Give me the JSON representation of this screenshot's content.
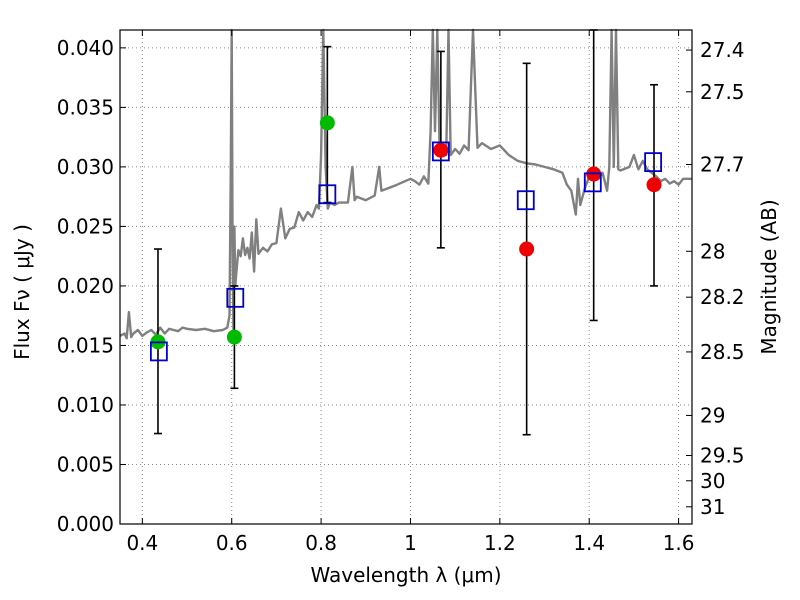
{
  "chart_data": {
    "type": "scatter",
    "xlabel": "Wavelength  λ (μm)",
    "ylabel": "Flux  Fν  ( μJy )",
    "y2label": "Magnitude (AB)",
    "xlim": [
      0.35,
      1.63
    ],
    "ylim": [
      0.0,
      0.0415
    ],
    "grid": true,
    "x_ticks": [
      {
        "value": 0.4,
        "label": "0.4"
      },
      {
        "value": 0.6,
        "label": "0.6"
      },
      {
        "value": 0.8,
        "label": "0.8"
      },
      {
        "value": 1.0,
        "label": "1"
      },
      {
        "value": 1.2,
        "label": "1.2"
      },
      {
        "value": 1.4,
        "label": "1.4"
      },
      {
        "value": 1.6,
        "label": "1.6"
      }
    ],
    "y_ticks": [
      {
        "value": 0.0,
        "label": "0.000"
      },
      {
        "value": 0.005,
        "label": "0.005"
      },
      {
        "value": 0.01,
        "label": "0.010"
      },
      {
        "value": 0.015,
        "label": "0.015"
      },
      {
        "value": 0.02,
        "label": "0.020"
      },
      {
        "value": 0.025,
        "label": "0.025"
      },
      {
        "value": 0.03,
        "label": "0.030"
      },
      {
        "value": 0.035,
        "label": "0.035"
      },
      {
        "value": 0.04,
        "label": "0.040"
      }
    ],
    "y2_ticks": [
      {
        "value": 27.4,
        "label": "27.4"
      },
      {
        "value": 27.5,
        "label": "27.5"
      },
      {
        "value": 27.7,
        "label": "27.7"
      },
      {
        "value": 28.0,
        "label": "28"
      },
      {
        "value": 28.2,
        "label": "28.2"
      },
      {
        "value": 28.5,
        "label": "28.5"
      },
      {
        "value": 29.0,
        "label": "29"
      },
      {
        "value": 29.5,
        "label": "29.5"
      },
      {
        "value": 30.0,
        "label": "30"
      },
      {
        "value": 31.0,
        "label": "31"
      }
    ],
    "colors": {
      "model_spectrum": "#808080",
      "model_photometry": "#0000cc",
      "detection_green": "#00bb00",
      "detection_red": "#ee0000",
      "errorbar": "#000000",
      "grid": "#888888"
    },
    "series": [
      {
        "marker": "circle",
        "color": "#00bb00",
        "points": [
          {
            "x": 0.435,
            "y": 0.0153
          },
          {
            "x": 0.606,
            "y": 0.0157
          },
          {
            "x": 0.814,
            "y": 0.0337
          }
        ]
      },
      {
        "marker": "circle",
        "color": "#ee0000",
        "points": [
          {
            "x": 1.068,
            "y": 0.0314
          },
          {
            "x": 1.26,
            "y": 0.0231
          },
          {
            "x": 1.41,
            "y": 0.0294
          },
          {
            "x": 1.545,
            "y": 0.0285
          }
        ]
      },
      {
        "marker": "errorbar",
        "color": "#000000",
        "points": [
          {
            "x": 0.435,
            "low": 0.0076,
            "high": 0.0231
          },
          {
            "x": 0.606,
            "low": 0.0114,
            "high": 0.02
          },
          {
            "x": 0.814,
            "low": 0.027,
            "high": 0.0401
          },
          {
            "x": 1.068,
            "low": 0.0232,
            "high": 0.0397
          },
          {
            "x": 1.26,
            "low": 0.0075,
            "high": 0.0387
          },
          {
            "x": 1.41,
            "low": 0.0171,
            "high": 0.0415
          },
          {
            "x": 1.545,
            "low": 0.02,
            "high": 0.0369
          }
        ]
      },
      {
        "marker": "square",
        "color": "#0000cc",
        "points": [
          {
            "x": 0.437,
            "y": 0.0145
          },
          {
            "x": 0.608,
            "y": 0.019
          },
          {
            "x": 0.814,
            "y": 0.0277
          },
          {
            "x": 1.068,
            "y": 0.0313
          },
          {
            "x": 1.258,
            "y": 0.0272
          },
          {
            "x": 1.408,
            "y": 0.0287
          },
          {
            "x": 1.543,
            "y": 0.0304
          }
        ]
      },
      {
        "marker": "line",
        "color": "#808080",
        "points": [
          [
            0.35,
            0.0158
          ],
          [
            0.36,
            0.016
          ],
          [
            0.365,
            0.0156
          ],
          [
            0.37,
            0.0178
          ],
          [
            0.375,
            0.0157
          ],
          [
            0.38,
            0.016
          ],
          [
            0.39,
            0.0163
          ],
          [
            0.4,
            0.0158
          ],
          [
            0.41,
            0.0161
          ],
          [
            0.42,
            0.0163
          ],
          [
            0.43,
            0.0159
          ],
          [
            0.44,
            0.0165
          ],
          [
            0.45,
            0.016
          ],
          [
            0.46,
            0.0164
          ],
          [
            0.47,
            0.0163
          ],
          [
            0.48,
            0.0162
          ],
          [
            0.49,
            0.0165
          ],
          [
            0.5,
            0.0164
          ],
          [
            0.52,
            0.0163
          ],
          [
            0.54,
            0.0164
          ],
          [
            0.56,
            0.0162
          ],
          [
            0.58,
            0.0163
          ],
          [
            0.59,
            0.0165
          ],
          [
            0.595,
            0.0175
          ],
          [
            0.598,
            0.03
          ],
          [
            0.6,
            0.0415
          ],
          [
            0.602,
            0.023
          ],
          [
            0.604,
            0.016
          ],
          [
            0.606,
            0.025
          ],
          [
            0.608,
            0.02
          ],
          [
            0.61,
            0.021
          ],
          [
            0.615,
            0.023
          ],
          [
            0.62,
            0.0225
          ],
          [
            0.625,
            0.024
          ],
          [
            0.63,
            0.0226
          ],
          [
            0.635,
            0.0232
          ],
          [
            0.64,
            0.0223
          ],
          [
            0.645,
            0.0245
          ],
          [
            0.65,
            0.0212
          ],
          [
            0.655,
            0.0256
          ],
          [
            0.66,
            0.0227
          ],
          [
            0.67,
            0.0232
          ],
          [
            0.68,
            0.0229
          ],
          [
            0.69,
            0.0235
          ],
          [
            0.7,
            0.0236
          ],
          [
            0.71,
            0.0265
          ],
          [
            0.72,
            0.024
          ],
          [
            0.73,
            0.0248
          ],
          [
            0.74,
            0.0249
          ],
          [
            0.75,
            0.0262
          ],
          [
            0.76,
            0.0255
          ],
          [
            0.77,
            0.0262
          ],
          [
            0.78,
            0.0258
          ],
          [
            0.79,
            0.0268
          ],
          [
            0.795,
            0.0265
          ],
          [
            0.8,
            0.031
          ],
          [
            0.805,
            0.0415
          ],
          [
            0.81,
            0.03
          ],
          [
            0.815,
            0.0265
          ],
          [
            0.82,
            0.027
          ],
          [
            0.83,
            0.0268
          ],
          [
            0.84,
            0.027
          ],
          [
            0.86,
            0.027
          ],
          [
            0.87,
            0.03
          ],
          [
            0.875,
            0.0272
          ],
          [
            0.88,
            0.0275
          ],
          [
            0.9,
            0.0272
          ],
          [
            0.92,
            0.0276
          ],
          [
            0.93,
            0.03
          ],
          [
            0.935,
            0.028
          ],
          [
            0.95,
            0.0282
          ],
          [
            0.97,
            0.0285
          ],
          [
            1.0,
            0.029
          ],
          [
            1.01,
            0.0288
          ],
          [
            1.02,
            0.0285
          ],
          [
            1.03,
            0.0292
          ],
          [
            1.04,
            0.0286
          ],
          [
            1.045,
            0.033
          ],
          [
            1.05,
            0.0415
          ],
          [
            1.055,
            0.033
          ],
          [
            1.06,
            0.0415
          ],
          [
            1.065,
            0.032
          ],
          [
            1.07,
            0.031
          ],
          [
            1.08,
            0.031
          ],
          [
            1.085,
            0.0415
          ],
          [
            1.09,
            0.031
          ],
          [
            1.1,
            0.0315
          ],
          [
            1.11,
            0.0311
          ],
          [
            1.12,
            0.0318
          ],
          [
            1.13,
            0.0314
          ],
          [
            1.14,
            0.0415
          ],
          [
            1.15,
            0.0316
          ],
          [
            1.16,
            0.032
          ],
          [
            1.18,
            0.0315
          ],
          [
            1.2,
            0.0318
          ],
          [
            1.22,
            0.031
          ],
          [
            1.24,
            0.0305
          ],
          [
            1.26,
            0.0303
          ],
          [
            1.28,
            0.0302
          ],
          [
            1.3,
            0.03
          ],
          [
            1.32,
            0.0298
          ],
          [
            1.34,
            0.0295
          ],
          [
            1.35,
            0.0285
          ],
          [
            1.36,
            0.028
          ],
          [
            1.37,
            0.026
          ],
          [
            1.375,
            0.029
          ],
          [
            1.38,
            0.0268
          ],
          [
            1.39,
            0.0282
          ],
          [
            1.4,
            0.0292
          ],
          [
            1.41,
            0.0297
          ],
          [
            1.42,
            0.029
          ],
          [
            1.43,
            0.0295
          ],
          [
            1.44,
            0.028
          ],
          [
            1.445,
            0.03
          ],
          [
            1.45,
            0.0415
          ],
          [
            1.455,
            0.03
          ],
          [
            1.46,
            0.0415
          ],
          [
            1.465,
            0.0298
          ],
          [
            1.47,
            0.0297
          ],
          [
            1.49,
            0.03
          ],
          [
            1.5,
            0.031
          ],
          [
            1.51,
            0.0298
          ],
          [
            1.52,
            0.0305
          ],
          [
            1.53,
            0.0298
          ],
          [
            1.55,
            0.0292
          ],
          [
            1.56,
            0.0288
          ],
          [
            1.57,
            0.029
          ],
          [
            1.58,
            0.0286
          ],
          [
            1.59,
            0.0288
          ],
          [
            1.6,
            0.0285
          ],
          [
            1.61,
            0.029
          ],
          [
            1.63,
            0.029
          ]
        ]
      }
    ]
  }
}
